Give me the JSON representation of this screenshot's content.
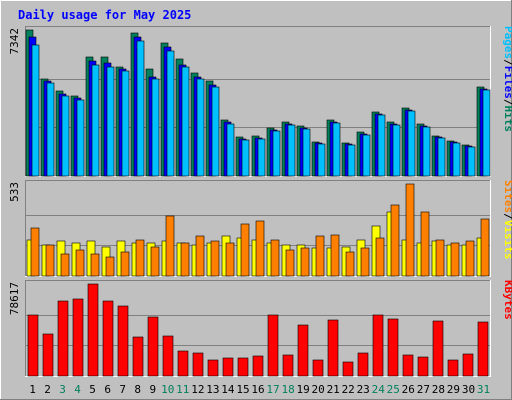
{
  "chart_data": {
    "type": "bar",
    "title": "Daily usage for May 2025",
    "colors": {
      "background": "#c0c0c0",
      "panel": "#c0c0c0",
      "grid": "#808080",
      "title": "#0000ff",
      "hits": "#00805c",
      "files": "#0000ff",
      "pages": "#00c0ff",
      "visits": "#ffff00",
      "sites": "#ff8000",
      "kbytes": "#ff0000",
      "weekend_tick": "#00805c",
      "weekday_tick": "#000000"
    },
    "days": [
      "1",
      "2",
      "3",
      "4",
      "5",
      "6",
      "7",
      "8",
      "9",
      "10",
      "11",
      "12",
      "13",
      "14",
      "15",
      "16",
      "17",
      "18",
      "19",
      "20",
      "21",
      "22",
      "23",
      "24",
      "25",
      "26",
      "27",
      "28",
      "29",
      "30",
      "31"
    ],
    "weekend_days": [
      "3",
      "4",
      "10",
      "11",
      "17",
      "18",
      "24",
      "25",
      "31"
    ],
    "panels": [
      {
        "id": "hits-files-pages",
        "ymax_label": "7342",
        "ymax": 7342,
        "legend": [
          {
            "text": "Pages",
            "color": "#00c0ff"
          },
          {
            "text": "/",
            "color": "#000000"
          },
          {
            "text": "Files",
            "color": "#0000ff"
          },
          {
            "text": "/",
            "color": "#000000"
          },
          {
            "text": "Hits",
            "color": "#00805c"
          }
        ],
        "series": [
          {
            "key": "hits",
            "values": [
              7342,
              4900,
              4250,
              4000,
              6000,
              6000,
              5500,
              7200,
              5400,
              6700,
              5900,
              5200,
              4800,
              2800,
              1950,
              2000,
              2400,
              2700,
              2500,
              1700,
              2800,
              1650,
              2200,
              3200,
              2700,
              3400,
              2600,
              2000,
              1750,
              1550,
              4500
            ]
          },
          {
            "key": "files",
            "values": [
              7000,
              4800,
              4100,
              3900,
              5800,
              5700,
              5400,
              7000,
              5000,
              6500,
              5600,
              5000,
              4600,
              2700,
              1850,
              1900,
              2300,
              2600,
              2400,
              1650,
              2700,
              1600,
              2100,
              3100,
              2600,
              3300,
              2500,
              1950,
              1700,
              1500,
              4400
            ]
          },
          {
            "key": "pages",
            "values": [
              6600,
              4700,
              4000,
              3800,
              5600,
              5500,
              5300,
              6800,
              4900,
              6300,
              5500,
              4900,
              4500,
              2600,
              1800,
              1850,
              2250,
              2550,
              2350,
              1600,
              2650,
              1550,
              2050,
              3050,
              2550,
              3250,
              2450,
              1900,
              1650,
              1450,
              4300
            ]
          }
        ]
      },
      {
        "id": "sites-visits",
        "ymax_label": "533",
        "ymax": 533,
        "legend": [
          {
            "text": "Sites",
            "color": "#ff8000"
          },
          {
            "text": "/",
            "color": "#000000"
          },
          {
            "text": "Visits",
            "color": "#ffff00"
          }
        ],
        "series": [
          {
            "key": "visits",
            "values": [
              210,
              180,
              200,
              190,
              200,
              170,
              200,
              190,
              190,
              200,
              190,
              180,
              190,
              230,
              220,
              210,
              190,
              180,
              180,
              160,
              160,
              170,
              210,
              290,
              370,
              210,
              190,
              200,
              180,
              180,
              220
            ]
          },
          {
            "key": "sites",
            "values": [
              280,
              180,
              130,
              150,
              130,
              110,
              140,
              210,
              170,
              350,
              190,
              230,
              200,
              190,
              300,
              320,
              210,
              150,
              160,
              230,
              240,
              140,
              160,
              220,
              410,
              533,
              370,
              210,
              190,
              200,
              330
            ]
          }
        ]
      },
      {
        "id": "kbytes",
        "ymax_label": "78617",
        "ymax": 78617,
        "legend": [
          {
            "text": "KBytes",
            "color": "#ff0000"
          }
        ],
        "series": [
          {
            "key": "kbytes",
            "values": [
              52000,
              36000,
              64000,
              66000,
              78617,
              64000,
              60000,
              33000,
              50000,
              34000,
              21000,
              20000,
              14000,
              15000,
              15000,
              17000,
              52000,
              18000,
              44000,
              14000,
              48000,
              12000,
              20000,
              52000,
              49000,
              18000,
              16000,
              47000,
              14000,
              19000,
              46000
            ]
          }
        ]
      }
    ]
  }
}
